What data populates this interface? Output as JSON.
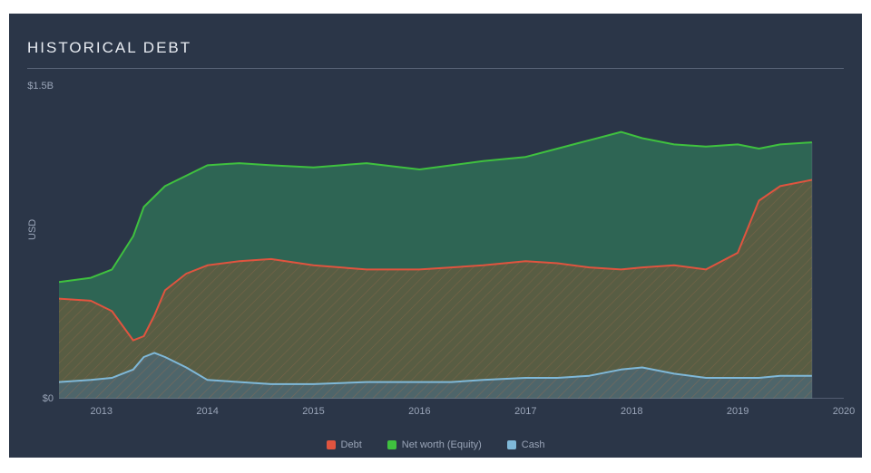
{
  "panel": {
    "background_color": "#2b3648",
    "title": "HISTORICAL DEBT",
    "title_color": "#e8ecf2",
    "title_fontsize": 17,
    "title_letter_spacing": 2,
    "rule_color": "#5a6578"
  },
  "chart": {
    "type": "area",
    "ylabel": "USD",
    "axis_text_color": "#9aa5b8",
    "axis_line_color": "#78839a",
    "hatch_color": "#9e6a4a",
    "hatch_opacity": 0.45,
    "x": {
      "min": 2012.6,
      "max": 2020.0,
      "ticks": [
        2013,
        2014,
        2015,
        2016,
        2017,
        2018,
        2019,
        2020
      ],
      "tick_labels": [
        "2013",
        "2014",
        "2015",
        "2016",
        "2017",
        "2018",
        "2019",
        "2020"
      ]
    },
    "y": {
      "min": 0,
      "max": 1.5,
      "ticks": [
        0,
        1.5
      ],
      "tick_labels": [
        "$0",
        "$1.5B"
      ]
    },
    "t_samples": [
      2012.6,
      2012.9,
      2013.1,
      2013.3,
      2013.4,
      2013.5,
      2013.6,
      2013.8,
      2014.0,
      2014.3,
      2014.6,
      2015.0,
      2015.5,
      2016.0,
      2016.3,
      2016.6,
      2017.0,
      2017.3,
      2017.6,
      2017.9,
      2018.1,
      2018.4,
      2018.7,
      2019.0,
      2019.2,
      2019.4,
      2019.7
    ],
    "series": [
      {
        "key": "net_worth",
        "label": "Net worth (Equity)",
        "stroke": "#3fc13f",
        "fill": "#2f6a55",
        "fill_opacity": 0.9,
        "hatched": false,
        "values": [
          0.56,
          0.58,
          0.62,
          0.78,
          0.92,
          0.97,
          1.02,
          1.07,
          1.12,
          1.13,
          1.12,
          1.11,
          1.13,
          1.1,
          1.12,
          1.14,
          1.16,
          1.2,
          1.24,
          1.28,
          1.25,
          1.22,
          1.21,
          1.22,
          1.2,
          1.22,
          1.23
        ]
      },
      {
        "key": "debt",
        "label": "Debt",
        "stroke": "#e0543f",
        "fill": "#6b5a3c",
        "fill_opacity": 0.7,
        "hatched": true,
        "values": [
          0.48,
          0.47,
          0.42,
          0.28,
          0.3,
          0.4,
          0.52,
          0.6,
          0.64,
          0.66,
          0.67,
          0.64,
          0.62,
          0.62,
          0.63,
          0.64,
          0.66,
          0.65,
          0.63,
          0.62,
          0.63,
          0.64,
          0.62,
          0.7,
          0.95,
          1.02,
          1.05
        ]
      },
      {
        "key": "cash",
        "label": "Cash",
        "stroke": "#7fb8d8",
        "fill": "#4a6a7a",
        "fill_opacity": 0.7,
        "hatched": true,
        "values": [
          0.08,
          0.09,
          0.1,
          0.14,
          0.2,
          0.22,
          0.2,
          0.15,
          0.09,
          0.08,
          0.07,
          0.07,
          0.08,
          0.08,
          0.08,
          0.09,
          0.1,
          0.1,
          0.11,
          0.14,
          0.15,
          0.12,
          0.1,
          0.1,
          0.1,
          0.11,
          0.11
        ]
      }
    ],
    "legend": [
      {
        "key": "debt",
        "label": "Debt",
        "color": "#e0543f"
      },
      {
        "key": "net_worth",
        "label": "Net worth (Equity)",
        "color": "#3fc13f"
      },
      {
        "key": "cash",
        "label": "Cash",
        "color": "#7fb8d8"
      }
    ]
  }
}
